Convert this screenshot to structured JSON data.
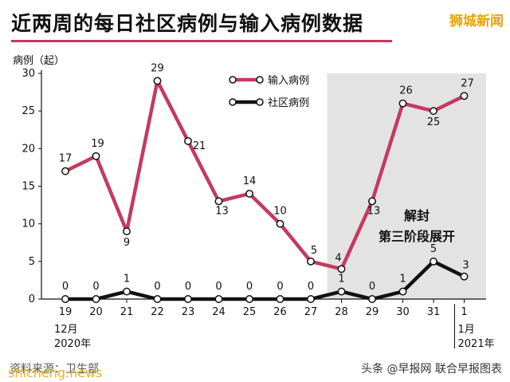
{
  "header": {
    "title": "近两周的每日社区病例与输入病例数据",
    "brand": "狮城新闻"
  },
  "footer": {
    "source": "资料来源：卫生部",
    "watermark": "shicheng.news",
    "credit": "头条 @早报网  联合早报图表"
  },
  "colors": {
    "imported": "#c43a5e",
    "community": "#111111",
    "shade": "#e3e3e3",
    "accent": "#e8a400"
  },
  "chart_data": {
    "type": "line",
    "title": "近两周的每日社区病例与输入病例数据",
    "ylabel": "病例（起）",
    "xlabel": "",
    "ylim": [
      0,
      30
    ],
    "yticks": [
      0,
      5,
      10,
      15,
      20,
      25,
      30
    ],
    "grid": false,
    "legend_position": "top-center",
    "categories": [
      "19",
      "20",
      "21",
      "22",
      "23",
      "24",
      "25",
      "26",
      "27",
      "28",
      "29",
      "30",
      "31",
      "1"
    ],
    "month_labels": [
      {
        "category": "19",
        "lines": [
          "12月",
          "2020年"
        ]
      },
      {
        "category": "1",
        "lines": [
          "1月",
          "2021年"
        ]
      }
    ],
    "series": [
      {
        "name": "输入病例",
        "color": "#c43a5e",
        "values": [
          17,
          19,
          9,
          29,
          21,
          13,
          14,
          10,
          5,
          4,
          13,
          26,
          25,
          27
        ]
      },
      {
        "name": "社区病例",
        "color": "#111111",
        "values": [
          0,
          0,
          1,
          0,
          0,
          0,
          0,
          0,
          0,
          1,
          0,
          1,
          5,
          3
        ]
      }
    ],
    "shaded_region": {
      "from": "28",
      "to": "1"
    },
    "annotations": [
      "解封",
      "第三阶段展开"
    ]
  }
}
